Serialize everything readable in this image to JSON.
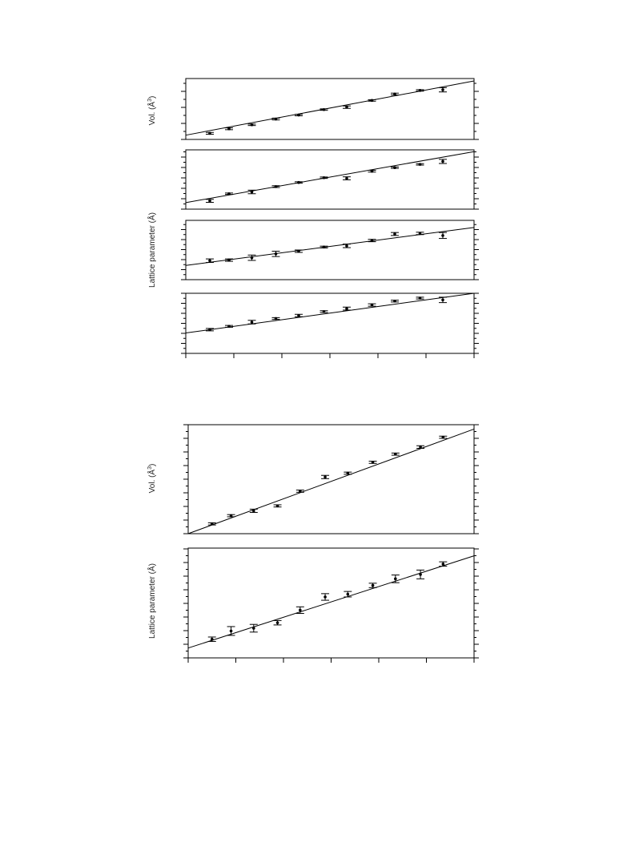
{
  "figures": [
    {
      "labels": {
        "top": "Vol. (Å",
        "sup": "3",
        "close": ")",
        "lower": "Lattice parameter (Å)"
      }
    },
    {
      "labels": {
        "top": "Vol. (Å",
        "sup": "3",
        "close": ")",
        "lower": "Lattice parameter (Å)"
      }
    }
  ],
  "chart_data": [
    {
      "type": "scatter",
      "title": "",
      "ylabel": "Vol. (Å³)",
      "xlim": [
        0,
        12
      ],
      "ylim": [
        0,
        10
      ],
      "grid": false,
      "fit": [
        [
          0,
          0.7
        ],
        [
          12,
          9.6
        ]
      ],
      "series": [
        {
          "x": [
            1,
            1.8,
            2.75,
            3.75,
            4.7,
            5.75,
            6.7,
            7.75,
            8.7,
            9.75,
            10.7
          ],
          "y": [
            1.0,
            1.75,
            2.4,
            3.35,
            4.0,
            4.9,
            5.3,
            6.4,
            7.45,
            8.05,
            8.15
          ],
          "err": [
            0.15,
            0.15,
            0.12,
            0.15,
            0.12,
            0.12,
            0.2,
            0.12,
            0.15,
            0.12,
            0.35
          ]
        }
      ]
    },
    {
      "type": "scatter",
      "ylabel": "",
      "xlim": [
        0,
        12
      ],
      "ylim": [
        0,
        10
      ],
      "grid": false,
      "fit": [
        [
          0,
          1.1
        ],
        [
          12,
          9.7
        ]
      ],
      "series": [
        {
          "x": [
            1,
            1.8,
            2.75,
            3.75,
            4.7,
            5.75,
            6.7,
            7.75,
            8.7,
            9.75,
            10.7
          ],
          "y": [
            1.4,
            2.6,
            2.9,
            3.8,
            4.5,
            5.3,
            5.2,
            6.4,
            7.0,
            7.55,
            8.05
          ],
          "err": [
            0.25,
            0.12,
            0.3,
            0.15,
            0.12,
            0.12,
            0.25,
            0.15,
            0.12,
            0.12,
            0.35
          ]
        }
      ]
    },
    {
      "type": "scatter",
      "ylabel": "Lattice parameter (Å)",
      "xlim": [
        0,
        12
      ],
      "ylim": [
        0,
        10
      ],
      "grid": false,
      "fit": [
        [
          0,
          2.4
        ],
        [
          12,
          8.8
        ]
      ],
      "series": [
        {
          "x": [
            1,
            1.8,
            2.75,
            3.75,
            4.7,
            5.75,
            6.7,
            7.75,
            8.7,
            9.75,
            10.7
          ],
          "y": [
            3.2,
            3.3,
            3.7,
            4.35,
            4.8,
            5.5,
            5.7,
            6.6,
            7.7,
            7.8,
            7.45
          ],
          "err": [
            0.3,
            0.2,
            0.45,
            0.45,
            0.2,
            0.15,
            0.3,
            0.2,
            0.25,
            0.2,
            0.5
          ]
        }
      ]
    },
    {
      "type": "scatter",
      "ylabel": "",
      "xlim": [
        0,
        12
      ],
      "ylim": [
        0,
        10
      ],
      "grid": false,
      "fit": [
        [
          0,
          3.4
        ],
        [
          12,
          10.0
        ]
      ],
      "series": [
        {
          "x": [
            1,
            1.8,
            2.75,
            3.75,
            4.7,
            5.75,
            6.7,
            7.75,
            8.7,
            9.75,
            10.7
          ],
          "y": [
            3.95,
            4.5,
            5.2,
            5.8,
            6.3,
            6.95,
            7.45,
            8.05,
            8.7,
            9.2,
            8.9
          ],
          "err": [
            0.2,
            0.15,
            0.3,
            0.15,
            0.2,
            0.15,
            0.25,
            0.2,
            0.15,
            0.15,
            0.45
          ]
        }
      ]
    },
    {
      "type": "scatter",
      "ylabel": "Vol. (Å³)",
      "xlim": [
        0,
        12
      ],
      "ylim": [
        0,
        10
      ],
      "grid": false,
      "fit": [
        [
          0,
          0
        ],
        [
          12,
          9.6
        ]
      ],
      "series": [
        {
          "x": [
            1,
            1.8,
            2.75,
            3.75,
            4.7,
            5.75,
            6.7,
            7.75,
            8.7,
            9.75,
            10.7
          ],
          "y": [
            0.9,
            1.65,
            2.1,
            2.55,
            3.9,
            5.2,
            5.55,
            6.55,
            7.3,
            7.95,
            8.85
          ],
          "err": [
            0.1,
            0.1,
            0.15,
            0.1,
            0.1,
            0.15,
            0.1,
            0.1,
            0.1,
            0.12,
            0.1
          ]
        }
      ]
    },
    {
      "type": "scatter",
      "ylabel": "Lattice parameter (Å)",
      "xlim": [
        0,
        12
      ],
      "ylim": [
        0,
        10
      ],
      "grid": false,
      "fit": [
        [
          0,
          0.9
        ],
        [
          12,
          9.3
        ]
      ],
      "series": [
        {
          "x": [
            1,
            1.8,
            2.75,
            3.75,
            4.7,
            5.75,
            6.7,
            7.75,
            8.7,
            9.75,
            10.7
          ],
          "y": [
            1.7,
            2.45,
            2.7,
            3.2,
            4.35,
            5.55,
            5.8,
            6.6,
            7.2,
            7.6,
            8.55
          ],
          "err": [
            0.2,
            0.4,
            0.35,
            0.2,
            0.3,
            0.3,
            0.25,
            0.2,
            0.35,
            0.4,
            0.2
          ]
        }
      ]
    }
  ]
}
